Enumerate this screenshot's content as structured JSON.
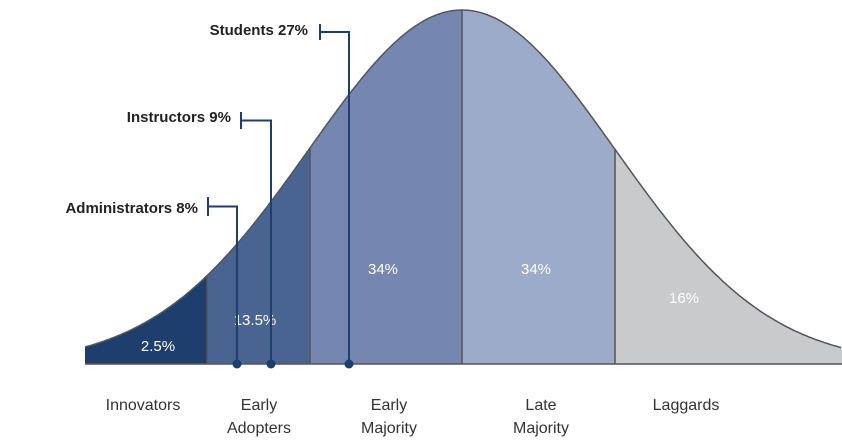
{
  "colors": {
    "innovators": "#1e3f6e",
    "early_adopters": "#4a6491",
    "early_majority": "#7587b0",
    "late_majority": "#9dabca",
    "laggards": "#c9cacc",
    "outline": "#555555",
    "callout_line": "#1e3f6e"
  },
  "segments": [
    {
      "key": "innovators",
      "percent": "2.5%",
      "categories": [
        "Innovators"
      ]
    },
    {
      "key": "early_adopters",
      "percent": "13.5%",
      "categories": [
        "Early",
        "Adopters"
      ]
    },
    {
      "key": "early_majority",
      "percent": "34%",
      "categories": [
        "Early",
        "Majority"
      ]
    },
    {
      "key": "late_majority",
      "percent": "34%",
      "categories": [
        "Late",
        "Majority"
      ]
    },
    {
      "key": "laggards",
      "percent": "16%",
      "categories": [
        "Laggards"
      ]
    }
  ],
  "callouts": [
    {
      "label": "Administrators 8%"
    },
    {
      "label": "Instructors 9%"
    },
    {
      "label": "Students 27%"
    }
  ]
}
